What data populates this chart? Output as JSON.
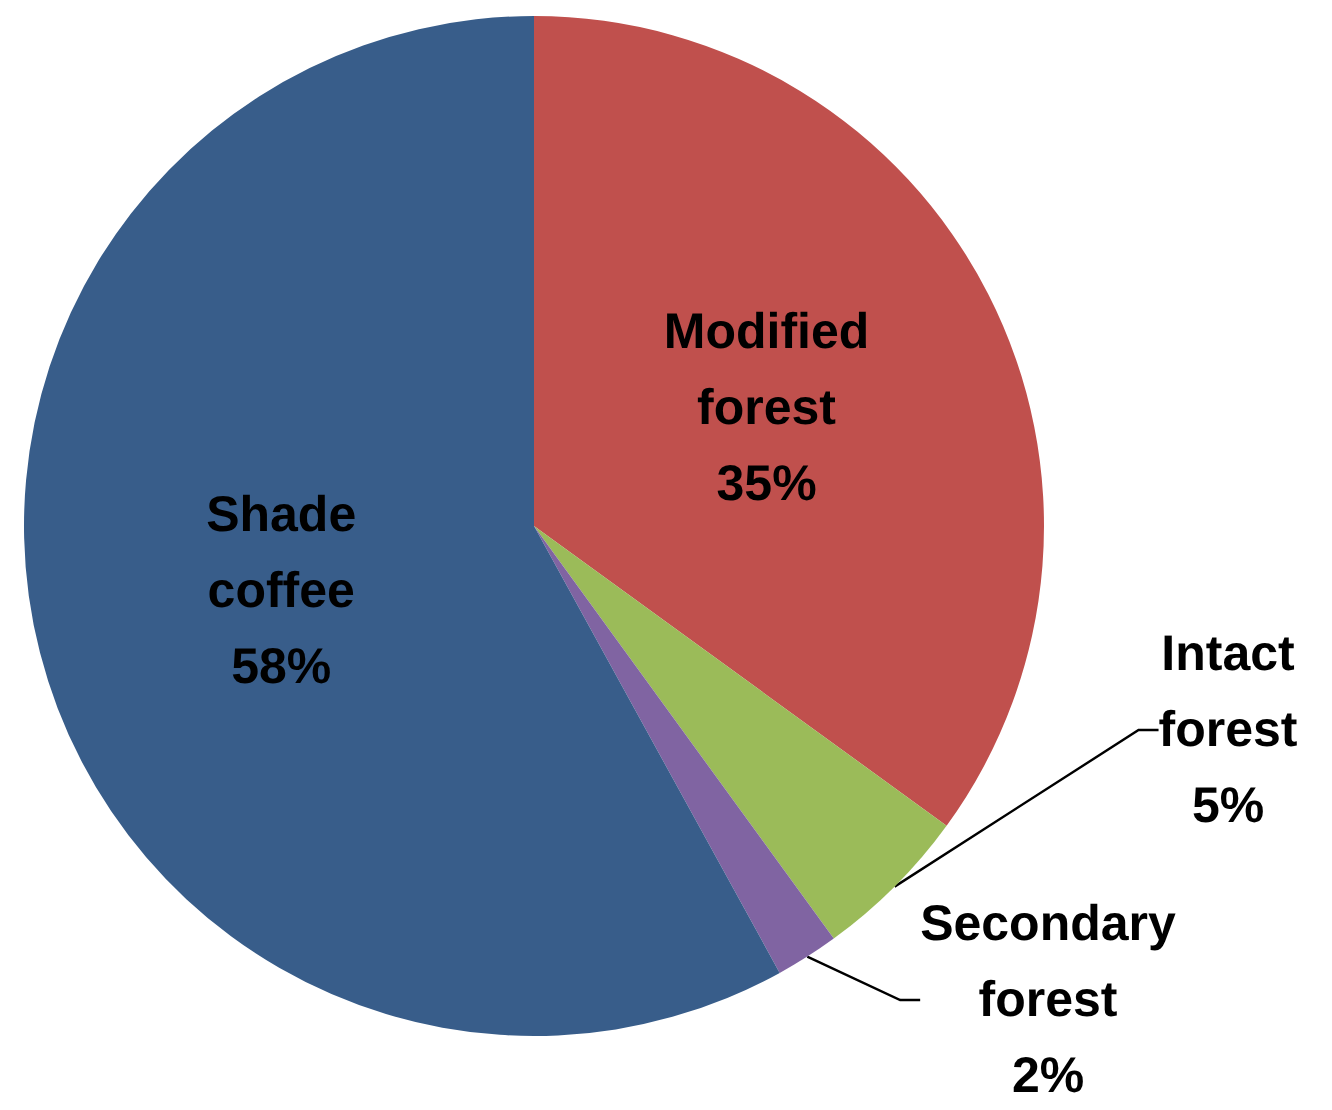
{
  "chart_data": {
    "type": "pie",
    "categories": [
      "Modified forest",
      "Intact forest",
      "Secondary forest",
      "Shade coffee"
    ],
    "values": [
      35,
      5,
      2,
      58
    ],
    "colors": [
      "#c0504d",
      "#9bbb59",
      "#8064a2",
      "#385d8a"
    ],
    "value_labels": [
      "35%",
      "5%",
      "2%",
      "58%"
    ],
    "legend": false
  }
}
